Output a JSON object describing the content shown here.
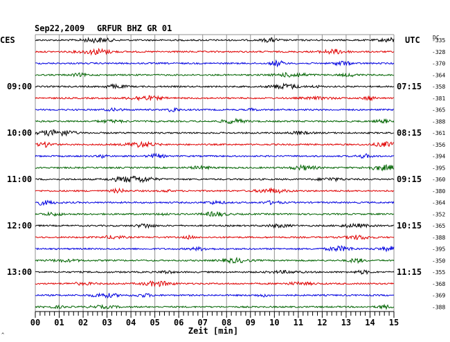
{
  "header": {
    "date": "Sep22,2009",
    "station": "GRFUR BHZ GR 01"
  },
  "left_label": "CES",
  "right_label": "UTC",
  "dc_label": "DC",
  "colors": {
    "trace_cycle": [
      "#000000",
      "#e00000",
      "#0000e0",
      "#006400"
    ],
    "grid": "#909090",
    "axis": "#000000",
    "text": "#000000"
  },
  "chart_data": {
    "type": "line",
    "xlabel": "Zeit [min]",
    "xlim": [
      0,
      15
    ],
    "x_ticks": [
      "00",
      "01",
      "02",
      "03",
      "04",
      "05",
      "06",
      "07",
      "08",
      "09",
      "10",
      "11",
      "12",
      "13",
      "14",
      "15"
    ],
    "row_count": 24,
    "rows_per_hour": 4,
    "left_time_labels": [
      {
        "row": 4,
        "label": "09:00"
      },
      {
        "row": 8,
        "label": "10:00"
      },
      {
        "row": 12,
        "label": "11:00"
      },
      {
        "row": 16,
        "label": "12:00"
      },
      {
        "row": 20,
        "label": "13:00"
      }
    ],
    "right_time_labels": [
      {
        "row": 4,
        "label": "07:15"
      },
      {
        "row": 8,
        "label": "08:15"
      },
      {
        "row": 12,
        "label": "09:15"
      },
      {
        "row": 16,
        "label": "10:15"
      },
      {
        "row": 20,
        "label": "11:15"
      }
    ],
    "dc_values": [
      -335,
      -328,
      -370,
      -364,
      -358,
      -381,
      -365,
      -388,
      -361,
      -356,
      -394,
      -395,
      -360,
      -380,
      -364,
      -352,
      -365,
      -388,
      -395,
      -350,
      -355,
      -368,
      -369,
      -388
    ]
  }
}
